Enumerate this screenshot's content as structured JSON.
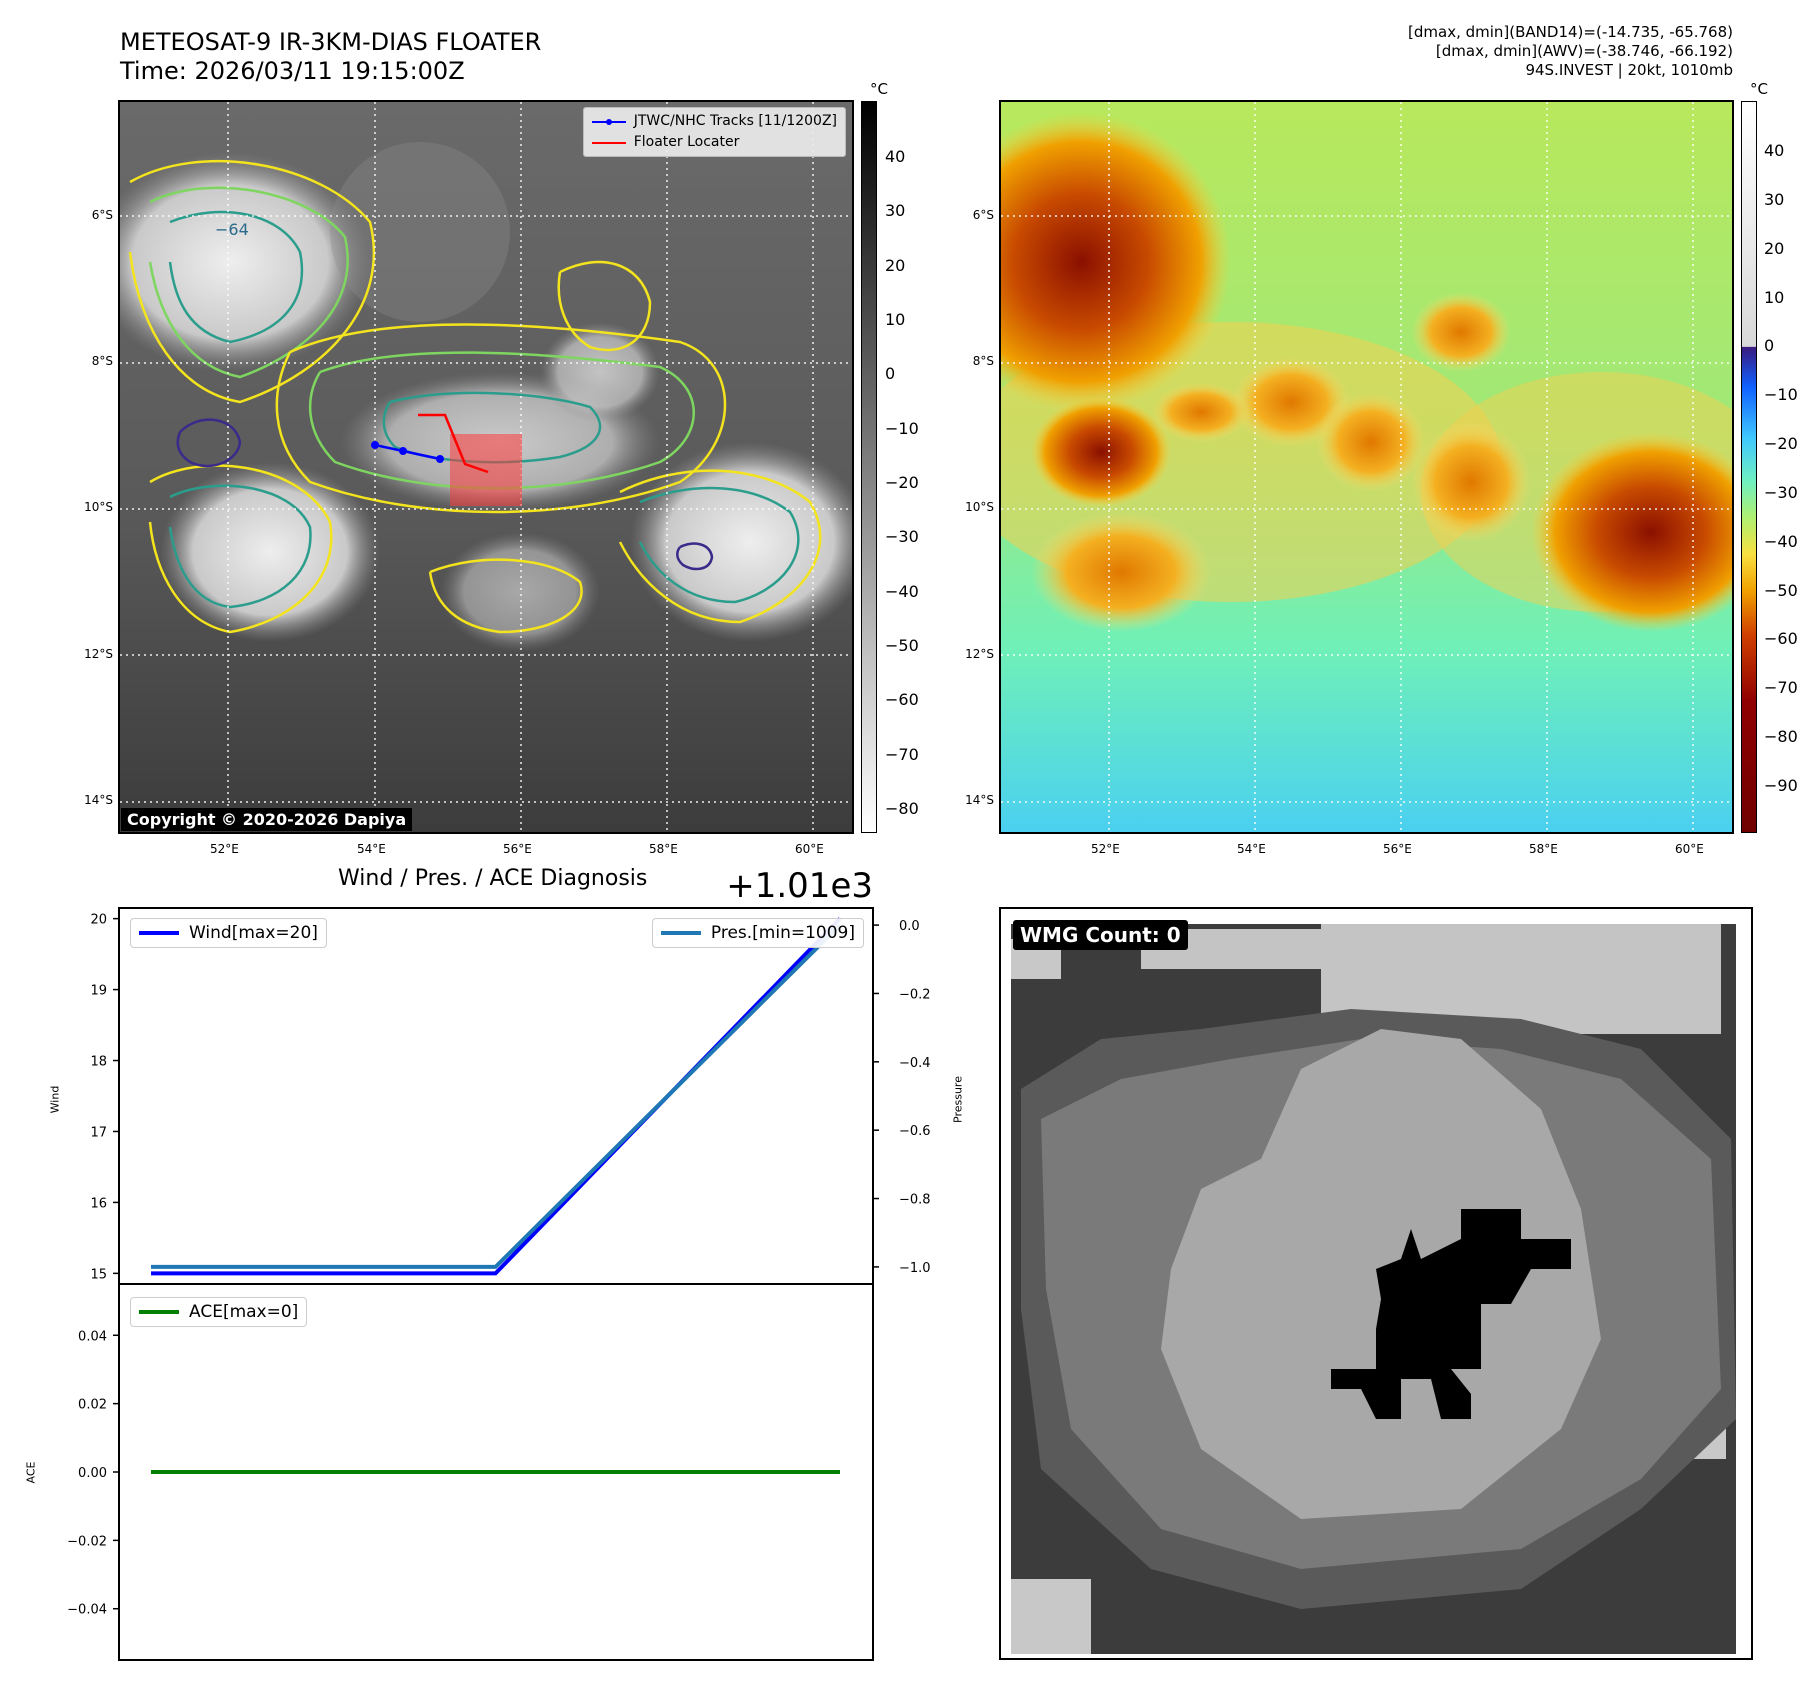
{
  "header": {
    "title_line1": "METEOSAT-9 IR-3KM-DIAS FLOATER",
    "title_line2": "Time: 2026/03/11 19:15:00Z",
    "info_line1": "[dmax, dmin](BAND14)=(-14.735, -65.768)",
    "info_line2": "[dmax, dmin](AWV)=(-38.746, -66.192)",
    "info_line3": "94S.INVEST | 20kt, 1010mb"
  },
  "ir_map": {
    "lat_ticks": [
      "6°S",
      "8°S",
      "10°S",
      "12°S",
      "14°S"
    ],
    "lon_ticks": [
      "52°E",
      "54°E",
      "56°E",
      "58°E",
      "60°E"
    ],
    "legend_track": "JTWC/NHC Tracks [11/1200Z]",
    "legend_floater": "Floater Locater",
    "copyright": "Copyright © 2020-2026 Dapiya",
    "contour_label": "−64",
    "cbar_unit": "°C",
    "cbar_ticks": [
      "40",
      "30",
      "20",
      "10",
      "0",
      "−10",
      "−20",
      "−30",
      "−40",
      "−50",
      "−60",
      "−70",
      "−80"
    ],
    "track_color": "#0000ff",
    "floater_color": "#ff0000"
  },
  "awv_map": {
    "lat_ticks": [
      "6°S",
      "8°S",
      "10°S",
      "12°S",
      "14°S"
    ],
    "lon_ticks": [
      "52°E",
      "54°E",
      "56°E",
      "58°E",
      "60°E"
    ],
    "cbar_unit": "°C",
    "cbar_ticks": [
      "40",
      "30",
      "20",
      "10",
      "0",
      "−10",
      "−20",
      "−30",
      "−40",
      "−50",
      "−60",
      "−70",
      "−80",
      "−90"
    ]
  },
  "chart_data": [
    {
      "type": "line",
      "title": "Wind / Pres. / ACE Diagnosis",
      "offset_label": "+1.01e3",
      "ylabel": "Wind",
      "ylabel_right": "Pressure",
      "ylim": [
        14.85,
        20.15
      ],
      "y_ticks": [
        "20",
        "19",
        "18",
        "17",
        "16",
        "15"
      ],
      "y2lim": [
        -1.05,
        0.05
      ],
      "y2_ticks": [
        "0.0",
        "−0.2",
        "−0.4",
        "−0.6",
        "−0.8",
        "−1.0"
      ],
      "x": [
        0,
        1,
        2
      ],
      "series": [
        {
          "name": "Wind[max=20]",
          "axis": "left",
          "color": "#0000ff",
          "values": [
            15,
            15,
            20
          ]
        },
        {
          "name": "Pres.[min=1009]",
          "axis": "right",
          "color": "#1f77b4",
          "values": [
            -1.0,
            -1.0,
            0.0
          ]
        }
      ]
    },
    {
      "type": "line",
      "ylabel": "ACE",
      "ylim": [
        -0.055,
        0.055
      ],
      "y_ticks": [
        "0.04",
        "0.02",
        "0.00",
        "−0.02",
        "−0.04"
      ],
      "x": [
        0,
        2
      ],
      "series": [
        {
          "name": "ACE[max=0]",
          "color": "#008000",
          "values": [
            0,
            0
          ]
        }
      ]
    }
  ],
  "wmg": {
    "label": "WMG Count: 0"
  }
}
